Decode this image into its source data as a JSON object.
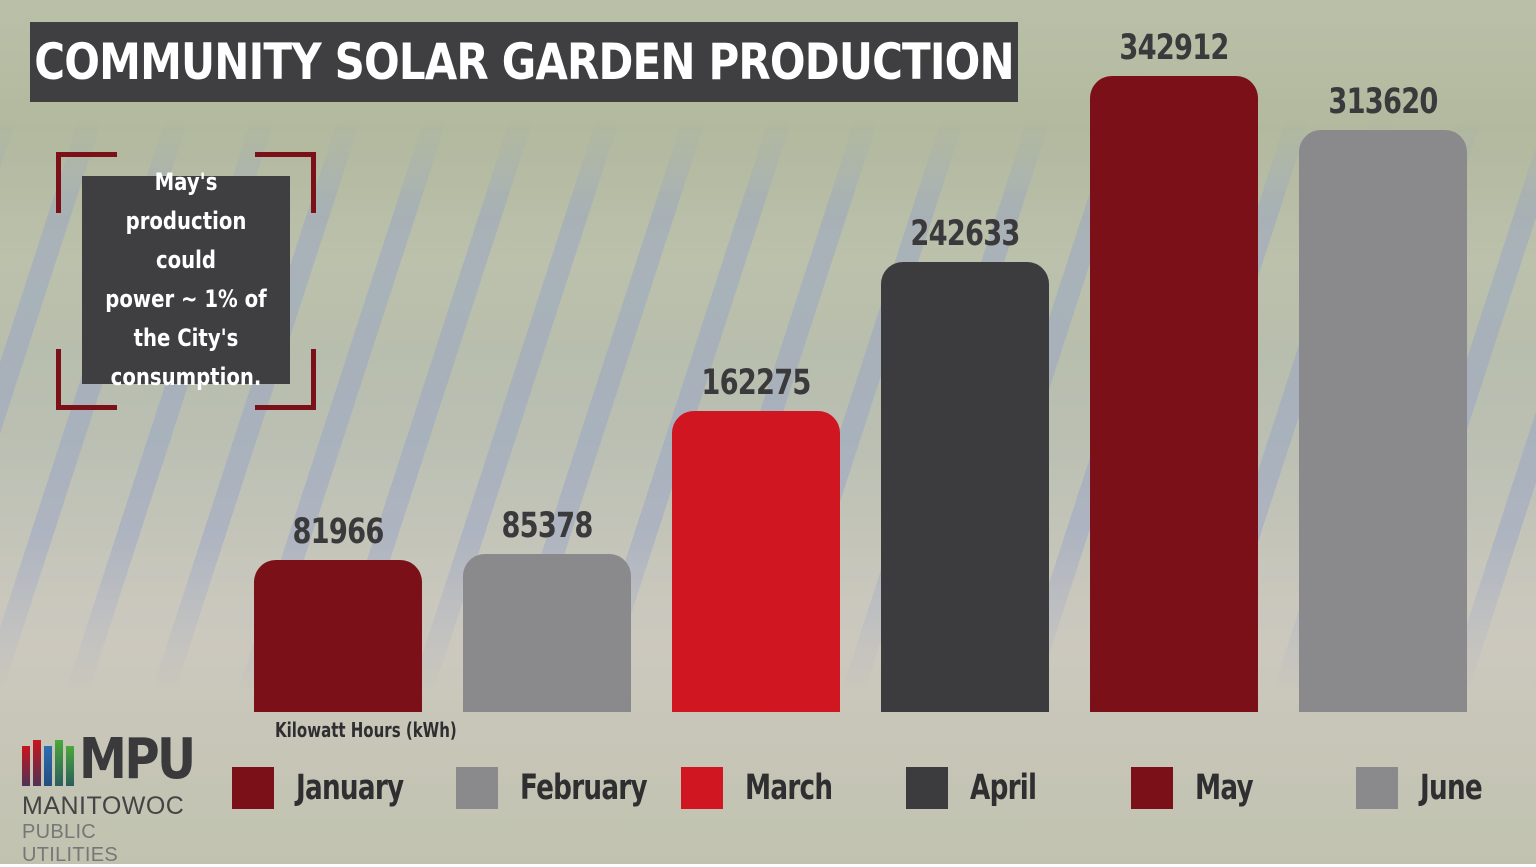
{
  "title": "COMMUNITY SOLAR GARDEN PRODUCTION",
  "callout": {
    "text": "May's\nproduction could\npower ~ 1% of\nthe City's\nconsumption."
  },
  "logo": {
    "mark": "MPU",
    "line1": "MANITOWOC",
    "line2": "PUBLIC UTILITIES",
    "stripe_colors": [
      "#c8141e",
      "#c8141e",
      "#2c6fb0",
      "#4aa83a",
      "#4aa83a"
    ]
  },
  "chart_data": {
    "type": "bar",
    "title": "COMMUNITY SOLAR GARDEN PRODUCTION",
    "xlabel": "",
    "ylabel": "Kilowatt Hours (kWh)",
    "categories": [
      "January",
      "February",
      "March",
      "April",
      "May",
      "June"
    ],
    "values": [
      81966,
      85378,
      162275,
      242633,
      342912,
      313620
    ],
    "colors": [
      "#7c1018",
      "#8a8a8c",
      "#d01620",
      "#3c3c3e",
      "#7c1018",
      "#8a8a8c"
    ],
    "data_labels": [
      "81966",
      "85378",
      "162275",
      "242633",
      "342912",
      "313620"
    ],
    "ylim": [
      0,
      342912
    ],
    "grid": false,
    "legend_position": "bottom",
    "annotation": "May's production could power ~ 1% of the City's consumption."
  }
}
